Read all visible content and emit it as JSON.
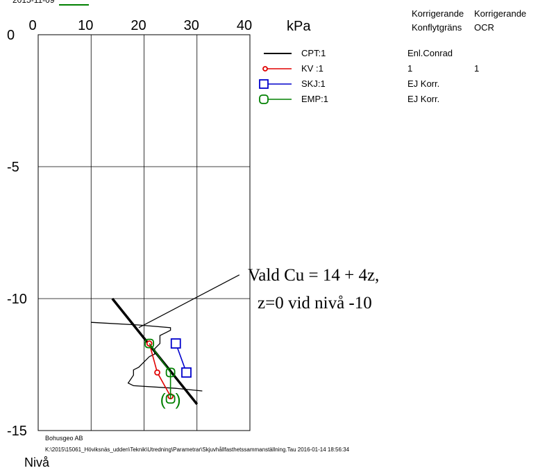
{
  "chart_data": {
    "type": "scatter",
    "xlabel": "kPa",
    "ylabel": "Nivå",
    "xlim": [
      0,
      40
    ],
    "ylim": [
      -15,
      0
    ],
    "x_ticks": [
      "0",
      "10",
      "20",
      "30",
      "40"
    ],
    "y_ticks": [
      "0",
      "-5",
      "-10",
      "-15"
    ],
    "grid": true,
    "top_label": "2015-11-09",
    "legend": {
      "placement": "top-right",
      "headers": [
        {
          "line1": "Korrigerande",
          "line2": "Konflytgräns"
        },
        {
          "line1": "Korrigerande",
          "line2": "OCR"
        }
      ],
      "entries": [
        {
          "name": "CPT:1",
          "correction": "Enl.Conrad",
          "ocr": "",
          "color": "#000000",
          "marker": "none"
        },
        {
          "name": "KV :1",
          "correction": "1",
          "ocr": "1",
          "color": "#e00000",
          "marker": "circle"
        },
        {
          "name": "SKJ:1",
          "correction": "EJ Korr.",
          "ocr": "",
          "color": "#0000cc",
          "marker": "square"
        },
        {
          "name": "EMP:1",
          "correction": "EJ Korr.",
          "ocr": "",
          "color": "#008000",
          "marker": "roundsquare"
        }
      ]
    },
    "series": [
      {
        "name": "CPT:1",
        "color": "#000000",
        "points": [
          [
            10,
            -10.9
          ],
          [
            19,
            -11.0
          ],
          [
            25,
            -11.1
          ],
          [
            25,
            -11.2
          ],
          [
            24,
            -11.3
          ],
          [
            23,
            -11.4
          ],
          [
            23,
            -11.7
          ],
          [
            22,
            -11.9
          ],
          [
            22,
            -12.1
          ],
          [
            21,
            -12.2
          ],
          [
            20,
            -12.4
          ],
          [
            19,
            -12.6
          ],
          [
            18,
            -12.7
          ],
          [
            18,
            -12.9
          ],
          [
            17,
            -13.2
          ],
          [
            18,
            -13.3
          ],
          [
            26,
            -13.4
          ],
          [
            31,
            -13.5
          ]
        ]
      },
      {
        "name": "KV :1",
        "color": "#e00000",
        "points": [
          [
            21,
            -11.7
          ],
          [
            22.5,
            -12.8
          ],
          [
            25,
            -13.7
          ]
        ]
      },
      {
        "name": "SKJ:1",
        "color": "#0000cc",
        "points": [
          [
            26,
            -11.7
          ],
          [
            28,
            -12.8
          ]
        ]
      },
      {
        "name": "EMP:1",
        "color": "#008000",
        "points": [
          [
            21,
            -11.7
          ],
          [
            25,
            -12.8
          ],
          [
            25,
            -13.8
          ]
        ]
      }
    ],
    "fit_line": {
      "points": [
        [
          14,
          -10.0
        ],
        [
          30,
          -14.0
        ]
      ],
      "color": "#000000"
    },
    "annotation": {
      "line1": "Vald Cu = 14 + 4z,",
      "line2": "z=0 vid nivå -10",
      "leader": [
        [
          19,
          -11.1
        ],
        [
          38,
          -9.1
        ]
      ],
      "bracket": {
        "text_left": "(",
        "text_right": ")",
        "point": [
          25,
          -13.8
        ]
      }
    },
    "footer": {
      "company": "Bohusgeo AB",
      "path": "K:\\2015\\15061_Höviksnäs_udden\\Teknik\\Utredning\\Parametrar\\Skjuvhållfasthetssammanställning.Tau  2016-01-14 18:56:34"
    }
  }
}
